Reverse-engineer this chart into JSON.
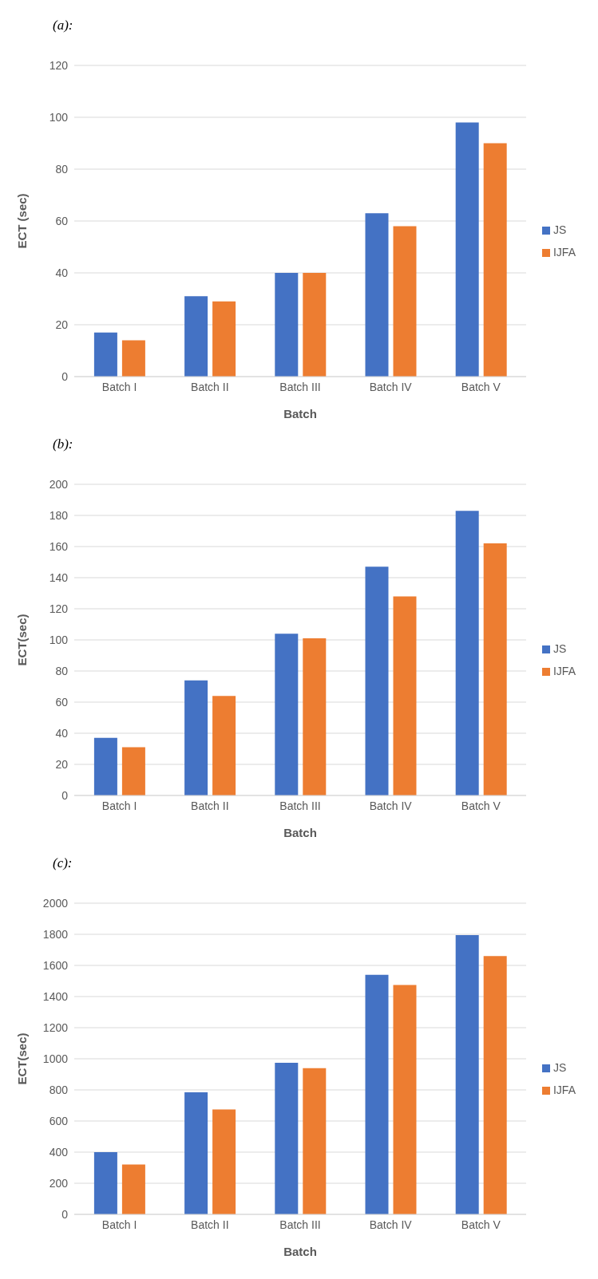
{
  "chart_data": [
    {
      "type": "bar",
      "title": "(a):",
      "xlabel": "Batch",
      "ylabel": "ECT (sec)",
      "categories": [
        "Batch I",
        "Batch II",
        "Batch III",
        "Batch IV",
        "Batch V"
      ],
      "series": [
        {
          "name": "JS",
          "color": "#4472c4",
          "values": [
            17,
            31,
            40,
            63,
            98
          ]
        },
        {
          "name": "IJFA",
          "color": "#ed7d31",
          "values": [
            14,
            29,
            40,
            58,
            90
          ]
        }
      ],
      "ylim": [
        0,
        120
      ],
      "yticks": [
        0,
        20,
        40,
        60,
        80,
        100,
        120
      ],
      "grid": "y",
      "legend": "right"
    },
    {
      "type": "bar",
      "title": "(b):",
      "xlabel": "Batch",
      "ylabel": "ECT(sec)",
      "categories": [
        "Batch I",
        "Batch II",
        "Batch III",
        "Batch IV",
        "Batch V"
      ],
      "series": [
        {
          "name": "JS",
          "color": "#4472c4",
          "values": [
            37,
            74,
            104,
            147,
            183
          ]
        },
        {
          "name": "IJFA",
          "color": "#ed7d31",
          "values": [
            31,
            64,
            101,
            128,
            162
          ]
        }
      ],
      "ylim": [
        0,
        200
      ],
      "yticks": [
        0,
        20,
        40,
        60,
        80,
        100,
        120,
        140,
        160,
        180,
        200
      ],
      "grid": "y",
      "legend": "right"
    },
    {
      "type": "bar",
      "title": "(c):",
      "xlabel": "Batch",
      "ylabel": "ECT(sec)",
      "categories": [
        "Batch I",
        "Batch II",
        "Batch III",
        "Batch IV",
        "Batch V"
      ],
      "series": [
        {
          "name": "JS",
          "color": "#4472c4",
          "values": [
            400,
            785,
            975,
            1540,
            1795
          ]
        },
        {
          "name": "IJFA",
          "color": "#ed7d31",
          "values": [
            320,
            675,
            940,
            1475,
            1660
          ]
        }
      ],
      "ylim": [
        0,
        2000
      ],
      "yticks": [
        0,
        200,
        400,
        600,
        800,
        1000,
        1200,
        1400,
        1600,
        1800,
        2000
      ],
      "grid": "y",
      "legend": "right"
    }
  ]
}
